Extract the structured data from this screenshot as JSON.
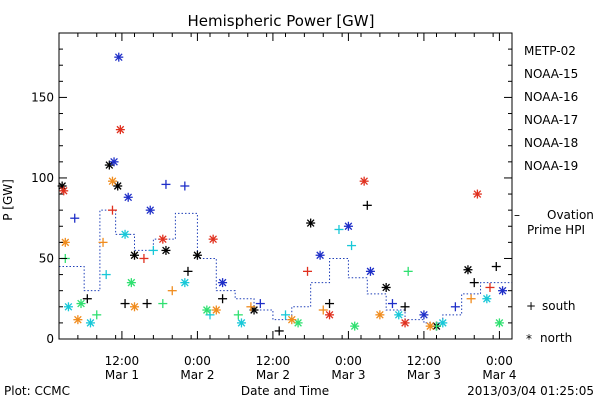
{
  "chart_data": {
    "type": "scatter",
    "title": "Hemispheric Power [GW]",
    "xlabel": "Date and Time",
    "ylabel": "P [GW]",
    "ylim": [
      0,
      190
    ],
    "xlim": [
      "2013-03-01 02:00",
      "2013-03-04 02:00"
    ],
    "yticks": [
      0,
      50,
      100,
      150
    ],
    "xticks": [
      {
        "time": "12:00",
        "date": "Mar 1",
        "t": "2013-03-01 12:00"
      },
      {
        "time": "0:00",
        "date": "Mar 2",
        "t": "2013-03-02 00:00"
      },
      {
        "time": "12:00",
        "date": "Mar 2",
        "t": "2013-03-02 12:00"
      },
      {
        "time": "0:00",
        "date": "Mar 3",
        "t": "2013-03-03 00:00"
      },
      {
        "time": "12:00",
        "date": "Mar 3",
        "t": "2013-03-03 12:00"
      },
      {
        "time": "0:00",
        "date": "Mar 4",
        "t": "2013-03-04 00:00"
      }
    ],
    "grid": false,
    "legend_position": "right",
    "marker_legend": {
      "south_symbol": "+",
      "south_label": "south",
      "north_symbol": "*",
      "north_label": "north"
    },
    "series": [
      {
        "name": "METP-02",
        "color": "#000000",
        "points": [
          {
            "t": "2013-03-01 02:30",
            "v": 95,
            "h": "north"
          },
          {
            "t": "2013-03-01 06:30",
            "v": 25,
            "h": "south"
          },
          {
            "t": "2013-03-01 10:00",
            "v": 108,
            "h": "north"
          },
          {
            "t": "2013-03-01 11:20",
            "v": 95,
            "h": "north"
          },
          {
            "t": "2013-03-01 12:30",
            "v": 22,
            "h": "south"
          },
          {
            "t": "2013-03-01 14:00",
            "v": 52,
            "h": "north"
          },
          {
            "t": "2013-03-01 16:00",
            "v": 22,
            "h": "south"
          },
          {
            "t": "2013-03-01 19:00",
            "v": 55,
            "h": "north"
          },
          {
            "t": "2013-03-01 22:30",
            "v": 42,
            "h": "south"
          },
          {
            "t": "2013-03-02 00:00",
            "v": 52,
            "h": "north"
          },
          {
            "t": "2013-03-02 04:00",
            "v": 25,
            "h": "south"
          },
          {
            "t": "2013-03-02 09:00",
            "v": 18,
            "h": "north"
          },
          {
            "t": "2013-03-02 13:00",
            "v": 5,
            "h": "south"
          },
          {
            "t": "2013-03-02 18:00",
            "v": 72,
            "h": "north"
          },
          {
            "t": "2013-03-02 21:00",
            "v": 22,
            "h": "south"
          },
          {
            "t": "2013-03-03 03:00",
            "v": 83,
            "h": "south"
          },
          {
            "t": "2013-03-03 06:00",
            "v": 32,
            "h": "north"
          },
          {
            "t": "2013-03-03 09:00",
            "v": 20,
            "h": "south"
          },
          {
            "t": "2013-03-03 14:00",
            "v": 8,
            "h": "north"
          },
          {
            "t": "2013-03-03 19:00",
            "v": 43,
            "h": "north"
          },
          {
            "t": "2013-03-03 20:00",
            "v": 35,
            "h": "south"
          },
          {
            "t": "2013-03-03 23:30",
            "v": 45,
            "h": "south"
          }
        ]
      },
      {
        "name": "NOAA-15",
        "color": "#1f2fc8",
        "points": [
          {
            "t": "2013-03-01 04:30",
            "v": 75,
            "h": "south"
          },
          {
            "t": "2013-03-01 10:45",
            "v": 110,
            "h": "north"
          },
          {
            "t": "2013-03-01 11:30",
            "v": 175,
            "h": "north"
          },
          {
            "t": "2013-03-01 13:00",
            "v": 88,
            "h": "north"
          },
          {
            "t": "2013-03-01 16:30",
            "v": 80,
            "h": "north"
          },
          {
            "t": "2013-03-01 19:00",
            "v": 96,
            "h": "south"
          },
          {
            "t": "2013-03-01 22:00",
            "v": 95,
            "h": "south"
          },
          {
            "t": "2013-03-02 04:00",
            "v": 35,
            "h": "north"
          },
          {
            "t": "2013-03-02 10:00",
            "v": 22,
            "h": "south"
          },
          {
            "t": "2013-03-02 19:30",
            "v": 52,
            "h": "north"
          },
          {
            "t": "2013-03-03 00:00",
            "v": 70,
            "h": "north"
          },
          {
            "t": "2013-03-03 03:30",
            "v": 42,
            "h": "north"
          },
          {
            "t": "2013-03-03 07:00",
            "v": 22,
            "h": "south"
          },
          {
            "t": "2013-03-03 12:00",
            "v": 15,
            "h": "north"
          },
          {
            "t": "2013-03-03 17:00",
            "v": 20,
            "h": "south"
          },
          {
            "t": "2013-03-04 00:30",
            "v": 30,
            "h": "north"
          }
        ]
      },
      {
        "name": "NOAA-16",
        "color": "#18c8d8",
        "points": [
          {
            "t": "2013-03-01 03:30",
            "v": 20,
            "h": "north"
          },
          {
            "t": "2013-03-01 07:00",
            "v": 10,
            "h": "north"
          },
          {
            "t": "2013-03-01 09:30",
            "v": 40,
            "h": "south"
          },
          {
            "t": "2013-03-01 12:30",
            "v": 65,
            "h": "north"
          },
          {
            "t": "2013-03-01 17:00",
            "v": 55,
            "h": "south"
          },
          {
            "t": "2013-03-01 22:00",
            "v": 35,
            "h": "north"
          },
          {
            "t": "2013-03-02 02:00",
            "v": 15,
            "h": "south"
          },
          {
            "t": "2013-03-02 07:00",
            "v": 10,
            "h": "north"
          },
          {
            "t": "2013-03-02 14:00",
            "v": 15,
            "h": "south"
          },
          {
            "t": "2013-03-02 22:30",
            "v": 68,
            "h": "south"
          },
          {
            "t": "2013-03-03 00:30",
            "v": 58,
            "h": "south"
          },
          {
            "t": "2013-03-03 08:00",
            "v": 15,
            "h": "north"
          },
          {
            "t": "2013-03-03 15:00",
            "v": 10,
            "h": "north"
          },
          {
            "t": "2013-03-03 22:00",
            "v": 25,
            "h": "north"
          }
        ]
      },
      {
        "name": "NOAA-17",
        "color": "#2fe070",
        "points": [
          {
            "t": "2013-03-01 03:00",
            "v": 50,
            "h": "south"
          },
          {
            "t": "2013-03-01 05:30",
            "v": 22,
            "h": "north"
          },
          {
            "t": "2013-03-01 08:00",
            "v": 15,
            "h": "south"
          },
          {
            "t": "2013-03-01 13:30",
            "v": 35,
            "h": "north"
          },
          {
            "t": "2013-03-01 18:30",
            "v": 22,
            "h": "south"
          },
          {
            "t": "2013-03-02 01:30",
            "v": 18,
            "h": "north"
          },
          {
            "t": "2013-03-02 06:30",
            "v": 15,
            "h": "south"
          },
          {
            "t": "2013-03-02 16:00",
            "v": 10,
            "h": "north"
          },
          {
            "t": "2013-03-03 01:00",
            "v": 8,
            "h": "north"
          },
          {
            "t": "2013-03-03 09:30",
            "v": 42,
            "h": "south"
          },
          {
            "t": "2013-03-03 14:00",
            "v": 8,
            "h": "south"
          },
          {
            "t": "2013-03-04 00:00",
            "v": 10,
            "h": "north"
          }
        ]
      },
      {
        "name": "NOAA-18",
        "color": "#f08c1e",
        "points": [
          {
            "t": "2013-03-01 03:00",
            "v": 60,
            "h": "north"
          },
          {
            "t": "2013-03-01 05:00",
            "v": 12,
            "h": "north"
          },
          {
            "t": "2013-03-01 09:00",
            "v": 60,
            "h": "south"
          },
          {
            "t": "2013-03-01 10:30",
            "v": 98,
            "h": "north"
          },
          {
            "t": "2013-03-01 14:00",
            "v": 20,
            "h": "north"
          },
          {
            "t": "2013-03-01 20:00",
            "v": 30,
            "h": "south"
          },
          {
            "t": "2013-03-02 03:00",
            "v": 18,
            "h": "north"
          },
          {
            "t": "2013-03-02 08:30",
            "v": 20,
            "h": "south"
          },
          {
            "t": "2013-03-02 15:00",
            "v": 12,
            "h": "north"
          },
          {
            "t": "2013-03-02 20:00",
            "v": 18,
            "h": "south"
          },
          {
            "t": "2013-03-03 05:00",
            "v": 15,
            "h": "north"
          },
          {
            "t": "2013-03-03 13:00",
            "v": 8,
            "h": "north"
          },
          {
            "t": "2013-03-03 19:30",
            "v": 25,
            "h": "south"
          }
        ]
      },
      {
        "name": "NOAA-19",
        "color": "#e0301e",
        "points": [
          {
            "t": "2013-03-01 02:45",
            "v": 92,
            "h": "north"
          },
          {
            "t": "2013-03-01 10:30",
            "v": 80,
            "h": "south"
          },
          {
            "t": "2013-03-01 11:45",
            "v": 130,
            "h": "north"
          },
          {
            "t": "2013-03-01 15:30",
            "v": 50,
            "h": "south"
          },
          {
            "t": "2013-03-01 18:30",
            "v": 62,
            "h": "north"
          },
          {
            "t": "2013-03-02 02:30",
            "v": 62,
            "h": "north"
          },
          {
            "t": "2013-03-02 17:30",
            "v": 42,
            "h": "south"
          },
          {
            "t": "2013-03-02 21:00",
            "v": 15,
            "h": "north"
          },
          {
            "t": "2013-03-03 02:30",
            "v": 98,
            "h": "north"
          },
          {
            "t": "2013-03-03 09:00",
            "v": 10,
            "h": "north"
          },
          {
            "t": "2013-03-03 20:30",
            "v": 90,
            "h": "north"
          },
          {
            "t": "2013-03-03 22:30",
            "v": 32,
            "h": "south"
          }
        ]
      }
    ],
    "reference_series": {
      "name": "Ovation Prime HPI",
      "color": "#1f3fb8",
      "style": "dotted step",
      "points": [
        {
          "t": "2013-03-01 02:00",
          "v": 45
        },
        {
          "t": "2013-03-01 06:00",
          "v": 30
        },
        {
          "t": "2013-03-01 08:30",
          "v": 80
        },
        {
          "t": "2013-03-01 11:00",
          "v": 65
        },
        {
          "t": "2013-03-01 14:00",
          "v": 55
        },
        {
          "t": "2013-03-01 17:00",
          "v": 62
        },
        {
          "t": "2013-03-01 20:30",
          "v": 78
        },
        {
          "t": "2013-03-02 00:00",
          "v": 50
        },
        {
          "t": "2013-03-02 03:00",
          "v": 30
        },
        {
          "t": "2013-03-02 06:00",
          "v": 25
        },
        {
          "t": "2013-03-02 09:00",
          "v": 18
        },
        {
          "t": "2013-03-02 12:00",
          "v": 12
        },
        {
          "t": "2013-03-02 15:00",
          "v": 20
        },
        {
          "t": "2013-03-02 18:00",
          "v": 35
        },
        {
          "t": "2013-03-02 21:00",
          "v": 50
        },
        {
          "t": "2013-03-03 00:00",
          "v": 38
        },
        {
          "t": "2013-03-03 03:00",
          "v": 28
        },
        {
          "t": "2013-03-03 06:00",
          "v": 18
        },
        {
          "t": "2013-03-03 09:00",
          "v": 12
        },
        {
          "t": "2013-03-03 12:00",
          "v": 10
        },
        {
          "t": "2013-03-03 15:00",
          "v": 15
        },
        {
          "t": "2013-03-03 18:00",
          "v": 28
        },
        {
          "t": "2013-03-03 21:00",
          "v": 35
        },
        {
          "t": "2013-03-04 02:00",
          "v": 40
        }
      ],
      "legend_dash": "–",
      "legend_line1": "Ovation",
      "legend_line2": "Prime HPI"
    }
  },
  "footer": {
    "left": "Plot: CCMC",
    "center": "Date and Time",
    "right": "2013/03/04 01:25:05"
  }
}
